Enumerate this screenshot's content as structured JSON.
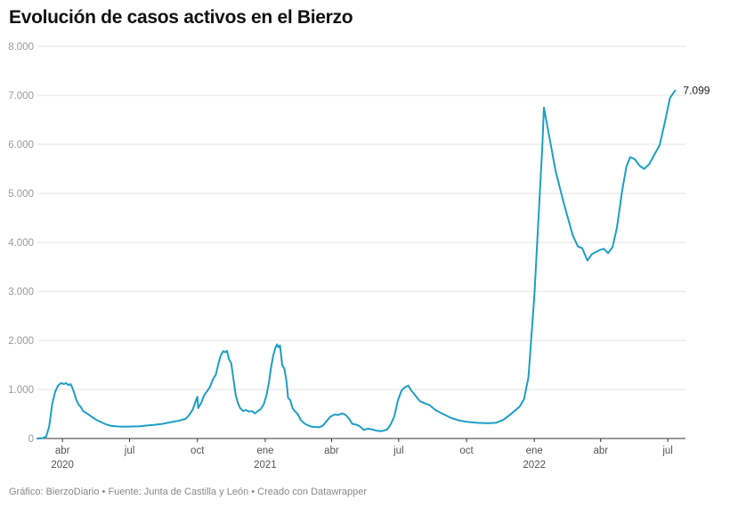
{
  "title": "Evolución de casos activos en el Bierzo",
  "footer": "Gráfico: BierzoDiario • Fuente: Junta de Castilla y León • Creado con Datawrapper",
  "colors": {
    "line": "#1d9ec6",
    "grid": "#e3e3e3",
    "axis": "#333333"
  },
  "chart_data": {
    "type": "line",
    "title": "Evolución de casos activos en el Bierzo",
    "xlabel": "",
    "ylabel": "",
    "ylim": [
      0,
      8000
    ],
    "xlim": [
      "2020-02-27",
      "2022-07-25"
    ],
    "yticks": [
      0,
      1000,
      2000,
      3000,
      4000,
      5000,
      6000,
      7000,
      8000
    ],
    "ytick_labels": [
      "0",
      "1.000",
      "2.000",
      "3.000",
      "4.000",
      "5.000",
      "6.000",
      "7.000",
      "8.000"
    ],
    "xticks": [
      {
        "date": "2020-04-01",
        "label": "abr",
        "year": "2020"
      },
      {
        "date": "2020-07-01",
        "label": "jul",
        "year": ""
      },
      {
        "date": "2020-10-01",
        "label": "oct",
        "year": ""
      },
      {
        "date": "2021-01-01",
        "label": "ene",
        "year": "2021"
      },
      {
        "date": "2021-04-01",
        "label": "abr",
        "year": ""
      },
      {
        "date": "2021-07-01",
        "label": "jul",
        "year": ""
      },
      {
        "date": "2021-10-01",
        "label": "oct",
        "year": ""
      },
      {
        "date": "2022-01-01",
        "label": "ene",
        "year": "2022"
      },
      {
        "date": "2022-04-01",
        "label": "abr",
        "year": ""
      },
      {
        "date": "2022-07-01",
        "label": "jul",
        "year": ""
      }
    ],
    "grid": true,
    "end_label": "7.099",
    "series": [
      {
        "points": [
          [
            "2020-02-27",
            0
          ],
          [
            "2020-03-05",
            5
          ],
          [
            "2020-03-10",
            40
          ],
          [
            "2020-03-14",
            250
          ],
          [
            "2020-03-18",
            700
          ],
          [
            "2020-03-22",
            950
          ],
          [
            "2020-03-26",
            1080
          ],
          [
            "2020-03-30",
            1130
          ],
          [
            "2020-04-03",
            1110
          ],
          [
            "2020-04-06",
            1130
          ],
          [
            "2020-04-09",
            1090
          ],
          [
            "2020-04-12",
            1110
          ],
          [
            "2020-04-14",
            1050
          ],
          [
            "2020-04-17",
            930
          ],
          [
            "2020-04-20",
            780
          ],
          [
            "2020-04-23",
            690
          ],
          [
            "2020-04-26",
            640
          ],
          [
            "2020-04-29",
            560
          ],
          [
            "2020-05-03",
            520
          ],
          [
            "2020-05-08",
            470
          ],
          [
            "2020-05-13",
            420
          ],
          [
            "2020-05-18",
            370
          ],
          [
            "2020-05-24",
            330
          ],
          [
            "2020-05-30",
            290
          ],
          [
            "2020-06-05",
            260
          ],
          [
            "2020-06-15",
            245
          ],
          [
            "2020-06-25",
            240
          ],
          [
            "2020-07-05",
            245
          ],
          [
            "2020-07-15",
            250
          ],
          [
            "2020-07-25",
            265
          ],
          [
            "2020-08-05",
            280
          ],
          [
            "2020-08-15",
            300
          ],
          [
            "2020-08-25",
            330
          ],
          [
            "2020-09-05",
            360
          ],
          [
            "2020-09-15",
            400
          ],
          [
            "2020-09-20",
            480
          ],
          [
            "2020-09-25",
            600
          ],
          [
            "2020-09-29",
            780
          ],
          [
            "2020-10-01",
            850
          ],
          [
            "2020-10-02",
            620
          ],
          [
            "2020-10-06",
            720
          ],
          [
            "2020-10-10",
            880
          ],
          [
            "2020-10-14",
            960
          ],
          [
            "2020-10-18",
            1050
          ],
          [
            "2020-10-22",
            1200
          ],
          [
            "2020-10-26",
            1300
          ],
          [
            "2020-10-30",
            1550
          ],
          [
            "2020-11-02",
            1700
          ],
          [
            "2020-11-05",
            1780
          ],
          [
            "2020-11-08",
            1760
          ],
          [
            "2020-11-10",
            1790
          ],
          [
            "2020-11-13",
            1620
          ],
          [
            "2020-11-16",
            1530
          ],
          [
            "2020-11-19",
            1200
          ],
          [
            "2020-11-22",
            880
          ],
          [
            "2020-11-25",
            720
          ],
          [
            "2020-11-28",
            620
          ],
          [
            "2020-12-02",
            560
          ],
          [
            "2020-12-06",
            580
          ],
          [
            "2020-12-10",
            550
          ],
          [
            "2020-12-14",
            560
          ],
          [
            "2020-12-18",
            510
          ],
          [
            "2020-12-22",
            560
          ],
          [
            "2020-12-26",
            600
          ],
          [
            "2020-12-30",
            700
          ],
          [
            "2021-01-03",
            900
          ],
          [
            "2021-01-06",
            1150
          ],
          [
            "2021-01-09",
            1450
          ],
          [
            "2021-01-12",
            1700
          ],
          [
            "2021-01-15",
            1860
          ],
          [
            "2021-01-17",
            1920
          ],
          [
            "2021-01-19",
            1860
          ],
          [
            "2021-01-21",
            1900
          ],
          [
            "2021-01-24",
            1500
          ],
          [
            "2021-01-27",
            1420
          ],
          [
            "2021-01-30",
            1150
          ],
          [
            "2021-02-01",
            830
          ],
          [
            "2021-02-04",
            780
          ],
          [
            "2021-02-07",
            620
          ],
          [
            "2021-02-10",
            560
          ],
          [
            "2021-02-14",
            500
          ],
          [
            "2021-02-18",
            380
          ],
          [
            "2021-02-22",
            320
          ],
          [
            "2021-02-26",
            280
          ],
          [
            "2021-03-05",
            240
          ],
          [
            "2021-03-15",
            230
          ],
          [
            "2021-03-20",
            260
          ],
          [
            "2021-03-25",
            350
          ],
          [
            "2021-03-30",
            440
          ],
          [
            "2021-04-05",
            490
          ],
          [
            "2021-04-10",
            480
          ],
          [
            "2021-04-15",
            510
          ],
          [
            "2021-04-20",
            480
          ],
          [
            "2021-04-25",
            400
          ],
          [
            "2021-04-29",
            300
          ],
          [
            "2021-05-05",
            280
          ],
          [
            "2021-05-10",
            240
          ],
          [
            "2021-05-15",
            170
          ],
          [
            "2021-05-20",
            200
          ],
          [
            "2021-05-25",
            190
          ],
          [
            "2021-06-01",
            160
          ],
          [
            "2021-06-08",
            150
          ],
          [
            "2021-06-15",
            180
          ],
          [
            "2021-06-20",
            280
          ],
          [
            "2021-06-25",
            450
          ],
          [
            "2021-06-30",
            780
          ],
          [
            "2021-07-05",
            980
          ],
          [
            "2021-07-10",
            1050
          ],
          [
            "2021-07-14",
            1080
          ],
          [
            "2021-07-18",
            980
          ],
          [
            "2021-07-24",
            870
          ],
          [
            "2021-07-30",
            760
          ],
          [
            "2021-08-05",
            720
          ],
          [
            "2021-08-12",
            680
          ],
          [
            "2021-08-20",
            580
          ],
          [
            "2021-08-30",
            500
          ],
          [
            "2021-09-10",
            420
          ],
          [
            "2021-09-20",
            370
          ],
          [
            "2021-10-01",
            340
          ],
          [
            "2021-10-15",
            320
          ],
          [
            "2021-10-30",
            310
          ],
          [
            "2021-11-10",
            320
          ],
          [
            "2021-11-20",
            380
          ],
          [
            "2021-11-27",
            460
          ],
          [
            "2021-12-05",
            560
          ],
          [
            "2021-12-12",
            650
          ],
          [
            "2021-12-18",
            800
          ],
          [
            "2021-12-24",
            1250
          ],
          [
            "2022-01-01",
            2900
          ],
          [
            "2022-01-07",
            4600
          ],
          [
            "2022-01-12",
            6000
          ],
          [
            "2022-01-14",
            6750
          ],
          [
            "2022-01-22",
            6100
          ],
          [
            "2022-01-30",
            5450
          ],
          [
            "2022-02-10",
            4800
          ],
          [
            "2022-02-22",
            4150
          ],
          [
            "2022-03-01",
            3920
          ],
          [
            "2022-03-07",
            3880
          ],
          [
            "2022-03-14",
            3630
          ],
          [
            "2022-03-20",
            3760
          ],
          [
            "2022-03-30",
            3840
          ],
          [
            "2022-04-05",
            3870
          ],
          [
            "2022-04-11",
            3780
          ],
          [
            "2022-04-17",
            3900
          ],
          [
            "2022-04-23",
            4300
          ],
          [
            "2022-04-30",
            5050
          ],
          [
            "2022-05-06",
            5550
          ],
          [
            "2022-05-11",
            5740
          ],
          [
            "2022-05-17",
            5700
          ],
          [
            "2022-05-24",
            5560
          ],
          [
            "2022-05-30",
            5500
          ],
          [
            "2022-06-06",
            5600
          ],
          [
            "2022-06-14",
            5820
          ],
          [
            "2022-06-20",
            5990
          ],
          [
            "2022-06-27",
            6450
          ],
          [
            "2022-07-04",
            6950
          ],
          [
            "2022-07-11",
            7099
          ]
        ]
      }
    ]
  }
}
